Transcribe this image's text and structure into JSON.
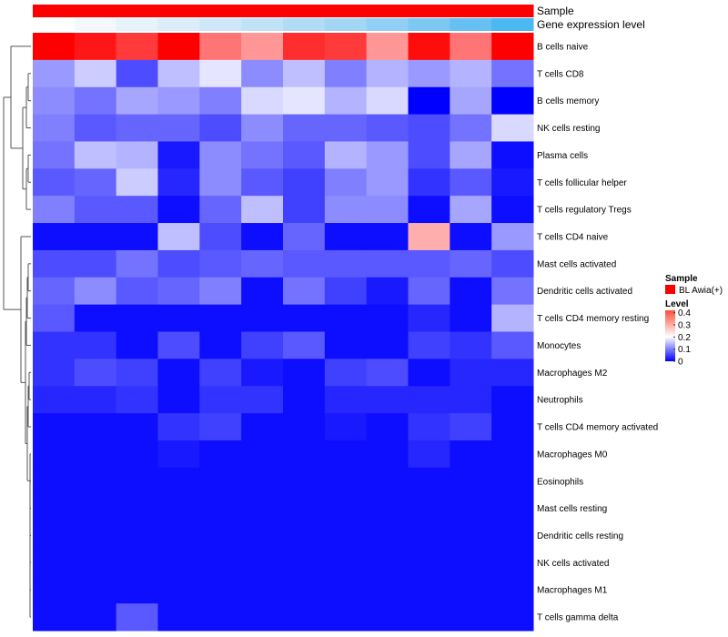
{
  "chart_data": {
    "type": "heatmap",
    "title": "",
    "annotation_tracks": {
      "sample_label": "Sample",
      "gene_expression_label": "Gene expression level"
    },
    "columns": 12,
    "rows": [
      "B cells naive",
      "T cells CD8",
      "B cells memory",
      "NK cells resting",
      "Plasma cells",
      "T cells follicular helper",
      "T cells regulatory  Tregs",
      "T cells CD4 naive",
      "Mast cells activated",
      "Dendritic cells activated",
      "T cells CD4 memory resting",
      "Monocytes",
      "Macrophages M2",
      "Neutrophils",
      "T cells CD4 memory activated",
      "Macrophages M0",
      "Eosinophils",
      "Mast cells resting",
      "Dendritic cells resting",
      "NK cells activated",
      "Macrophages M1",
      "T cells gamma delta"
    ],
    "values": [
      [
        0.42,
        0.4,
        0.37,
        0.42,
        0.32,
        0.29,
        0.38,
        0.37,
        0.29,
        0.41,
        0.32,
        0.42
      ],
      [
        0.12,
        0.16,
        0.06,
        0.15,
        0.18,
        0.11,
        0.15,
        0.1,
        0.14,
        0.12,
        0.14,
        0.09
      ],
      [
        0.11,
        0.09,
        0.13,
        0.12,
        0.1,
        0.17,
        0.18,
        0.14,
        0.17,
        0.0,
        0.13,
        0.0
      ],
      [
        0.1,
        0.07,
        0.08,
        0.08,
        0.06,
        0.11,
        0.08,
        0.08,
        0.07,
        0.06,
        0.09,
        0.17
      ],
      [
        0.09,
        0.15,
        0.14,
        0.02,
        0.11,
        0.09,
        0.07,
        0.14,
        0.12,
        0.06,
        0.13,
        0.01
      ],
      [
        0.07,
        0.08,
        0.16,
        0.03,
        0.11,
        0.07,
        0.05,
        0.1,
        0.12,
        0.04,
        0.07,
        0.02
      ],
      [
        0.1,
        0.07,
        0.07,
        0.01,
        0.08,
        0.15,
        0.05,
        0.11,
        0.11,
        0.01,
        0.13,
        0.01
      ],
      [
        0.01,
        0.01,
        0.01,
        0.15,
        0.06,
        0.01,
        0.08,
        0.01,
        0.01,
        0.27,
        0.01,
        0.12
      ],
      [
        0.06,
        0.06,
        0.09,
        0.06,
        0.07,
        0.08,
        0.07,
        0.07,
        0.07,
        0.07,
        0.08,
        0.06
      ],
      [
        0.08,
        0.11,
        0.07,
        0.08,
        0.1,
        0.01,
        0.09,
        0.05,
        0.02,
        0.08,
        0.01,
        0.09
      ],
      [
        0.07,
        0.01,
        0.01,
        0.01,
        0.01,
        0.01,
        0.01,
        0.01,
        0.01,
        0.03,
        0.01,
        0.14
      ],
      [
        0.04,
        0.04,
        0.01,
        0.06,
        0.01,
        0.05,
        0.07,
        0.01,
        0.01,
        0.05,
        0.04,
        0.07
      ],
      [
        0.04,
        0.06,
        0.05,
        0.01,
        0.05,
        0.02,
        0.01,
        0.05,
        0.06,
        0.01,
        0.03,
        0.03
      ],
      [
        0.03,
        0.03,
        0.04,
        0.01,
        0.04,
        0.04,
        0.01,
        0.03,
        0.03,
        0.03,
        0.03,
        0.01
      ],
      [
        0.01,
        0.01,
        0.01,
        0.04,
        0.05,
        0.01,
        0.01,
        0.02,
        0.01,
        0.04,
        0.05,
        0.01
      ],
      [
        0.01,
        0.01,
        0.01,
        0.02,
        0.01,
        0.01,
        0.01,
        0.01,
        0.01,
        0.03,
        0.01,
        0.01
      ],
      [
        0.01,
        0.01,
        0.01,
        0.01,
        0.01,
        0.01,
        0.01,
        0.01,
        0.01,
        0.01,
        0.01,
        0.01
      ],
      [
        0.01,
        0.01,
        0.01,
        0.01,
        0.01,
        0.01,
        0.01,
        0.01,
        0.01,
        0.01,
        0.01,
        0.01
      ],
      [
        0.01,
        0.01,
        0.01,
        0.01,
        0.01,
        0.01,
        0.01,
        0.01,
        0.01,
        0.01,
        0.01,
        0.01
      ],
      [
        0.01,
        0.01,
        0.01,
        0.01,
        0.01,
        0.01,
        0.01,
        0.01,
        0.01,
        0.01,
        0.01,
        0.01
      ],
      [
        0.01,
        0.01,
        0.01,
        0.01,
        0.01,
        0.01,
        0.01,
        0.01,
        0.01,
        0.01,
        0.01,
        0.01
      ],
      [
        0.01,
        0.01,
        0.07,
        0.01,
        0.01,
        0.01,
        0.01,
        0.01,
        0.01,
        0.01,
        0.01,
        0.01
      ]
    ],
    "sample_annotation": {
      "values": [
        "BL Awia(+)",
        "BL Awia(+)",
        "BL Awia(+)",
        "BL Awia(+)",
        "BL Awia(+)",
        "BL Awia(+)",
        "BL Awia(+)",
        "BL Awia(+)",
        "BL Awia(+)",
        "BL Awia(+)",
        "BL Awia(+)",
        "BL Awia(+)"
      ],
      "color": "#ff0000"
    },
    "gene_expression_annotation": {
      "values": [
        1,
        2,
        3,
        4,
        5,
        6,
        7,
        8,
        9,
        10,
        11,
        12
      ],
      "colors": [
        "#ffffff",
        "#f2f8fc",
        "#e7f3fb",
        "#daedf9",
        "#cde8f8",
        "#c0e2f7",
        "#b2dcf6",
        "#a3d6f5",
        "#91cff4",
        "#7cc8f3",
        "#66c0f2",
        "#4ab8f1"
      ]
    },
    "legend": {
      "sample_title": "Sample",
      "sample_entries": [
        {
          "label": "BL Awia(+)",
          "color": "#ff0000"
        }
      ],
      "level_title": "Level",
      "level_ticks": [
        "0.4",
        "0.3",
        "0.2",
        "0.1",
        "0"
      ],
      "level_tick_values": [
        0.4,
        0.3,
        0.2,
        0.1,
        0
      ],
      "placement": "right"
    },
    "color_scale": {
      "min": 0,
      "mid": 0.2,
      "max": 0.42,
      "low_color": "#0000ff",
      "mid_color": "#ffffff",
      "high_color": "#ff0000"
    },
    "dendrogram": "rows"
  }
}
